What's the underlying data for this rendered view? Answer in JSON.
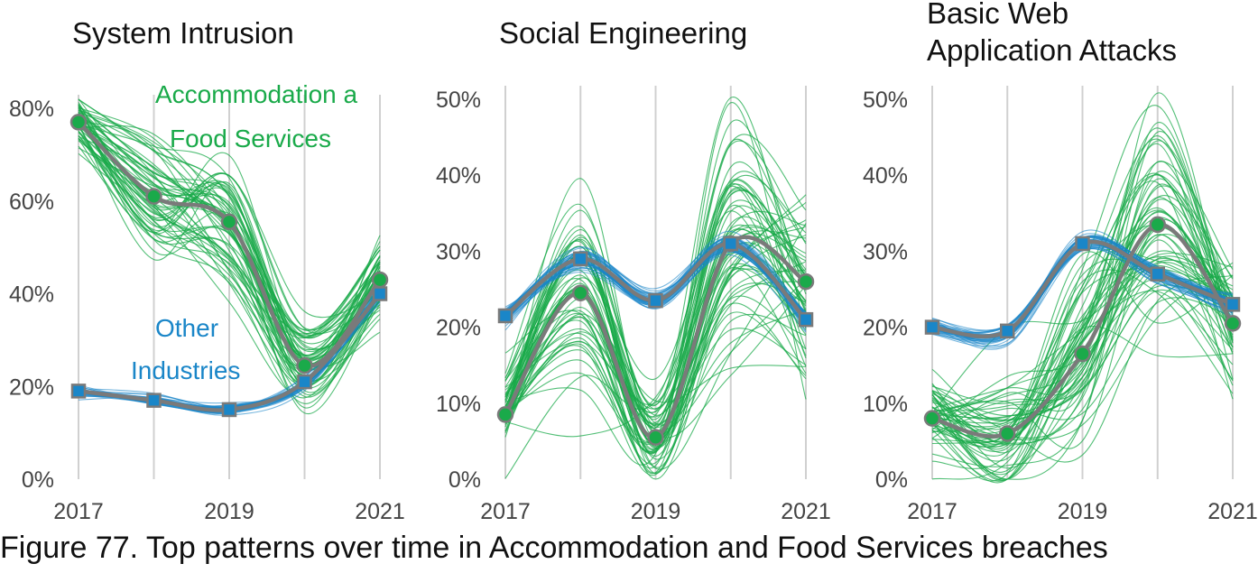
{
  "caption": "Figure 77. Top patterns over time in Accommodation and Food Services breaches",
  "colors": {
    "green": "#1aaa4a",
    "blue": "#1a86c8",
    "median": "#7a7a7a",
    "grid": "#d0d0d0"
  },
  "chart_data": [
    {
      "type": "line",
      "title": [
        "System Intrusion"
      ],
      "x": [
        2017,
        2018,
        2019,
        2020,
        2021
      ],
      "xticks": [
        "2017",
        "2019",
        "2021"
      ],
      "yticks": [
        "0%",
        "20%",
        "40%",
        "60%",
        "80%"
      ],
      "ylim": [
        0,
        0.8
      ],
      "annotations": [
        {
          "text": "Accommodation a",
          "series": "green"
        },
        {
          "text": "Food Services",
          "series": "green"
        },
        {
          "text": "Other",
          "series": "blue"
        },
        {
          "text": "Industries",
          "series": "blue"
        }
      ],
      "series": [
        {
          "key": "green",
          "values": [
            0.77,
            0.61,
            0.555,
            0.245,
            0.43
          ],
          "spread": [
            0.06,
            0.12,
            0.12,
            0.1,
            0.09
          ]
        },
        {
          "key": "blue",
          "values": [
            0.19,
            0.17,
            0.15,
            0.21,
            0.4
          ],
          "spread": [
            0.01,
            0.01,
            0.01,
            0.012,
            0.015
          ]
        }
      ]
    },
    {
      "type": "line",
      "title": [
        "Social Engineering"
      ],
      "x": [
        2017,
        2018,
        2019,
        2020,
        2021
      ],
      "xticks": [
        "2017",
        "2019",
        "2021"
      ],
      "yticks": [
        "0%",
        "10%",
        "20%",
        "30%",
        "40%",
        "50%"
      ],
      "ylim": [
        0,
        0.5
      ],
      "annotations": [],
      "series": [
        {
          "key": "green",
          "values": [
            0.085,
            0.245,
            0.055,
            0.31,
            0.26
          ],
          "spread": [
            0.045,
            0.13,
            0.06,
            0.15,
            0.11
          ]
        },
        {
          "key": "blue",
          "values": [
            0.215,
            0.29,
            0.235,
            0.31,
            0.21
          ],
          "spread": [
            0.012,
            0.012,
            0.012,
            0.012,
            0.012
          ]
        }
      ]
    },
    {
      "type": "line",
      "title": [
        "Basic Web",
        "Application Attacks"
      ],
      "x": [
        2017,
        2018,
        2019,
        2020,
        2021
      ],
      "xticks": [
        "2017",
        "2019",
        "2021"
      ],
      "yticks": [
        "0%",
        "10%",
        "20%",
        "30%",
        "40%",
        "50%"
      ],
      "ylim": [
        0,
        0.5
      ],
      "annotations": [],
      "series": [
        {
          "key": "green",
          "values": [
            0.08,
            0.06,
            0.165,
            0.335,
            0.205
          ],
          "spread": [
            0.05,
            0.08,
            0.1,
            0.14,
            0.1
          ]
        },
        {
          "key": "blue",
          "values": [
            0.2,
            0.195,
            0.31,
            0.27,
            0.23
          ],
          "spread": [
            0.012,
            0.012,
            0.012,
            0.012,
            0.012
          ]
        }
      ]
    }
  ]
}
